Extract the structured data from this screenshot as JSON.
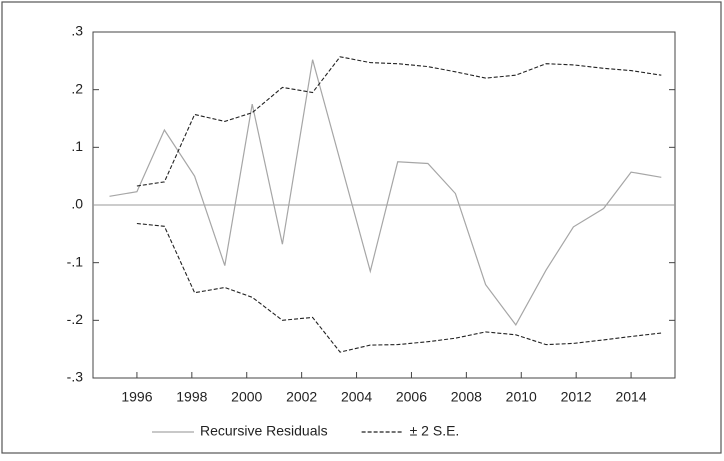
{
  "chart_data": {
    "type": "line",
    "xlim": [
      1994.4,
      2015.6
    ],
    "xticks": [
      1996,
      1998,
      2000,
      2002,
      2004,
      2006,
      2008,
      2010,
      2012,
      2014
    ],
    "ylim": [
      -0.3,
      0.3
    ],
    "yticks": [
      {
        "value": -0.3,
        "label": "-.3"
      },
      {
        "value": -0.2,
        "label": "-.2"
      },
      {
        "value": -0.1,
        "label": "-.1"
      },
      {
        "value": 0,
        "label": ".0"
      },
      {
        "value": 0.1,
        "label": ".1"
      },
      {
        "value": 0.2,
        "label": ".2"
      },
      {
        "value": 0.3,
        "label": ".3"
      }
    ],
    "series": [
      {
        "name": "Recursive Residuals",
        "color": "#a6a6a6",
        "dash": false,
        "x": [
          1995.0,
          1996.0,
          1997.0,
          1998.1,
          1999.2,
          2000.2,
          2001.3,
          2002.4,
          2004.5,
          2005.5,
          2006.6,
          2007.6,
          2008.7,
          2009.8,
          2010.9,
          2011.9,
          2013.0,
          2014.0,
          2015.1
        ],
        "values": [
          0.015,
          0.023,
          0.13,
          0.05,
          -0.105,
          0.175,
          -0.068,
          0.252,
          -0.115,
          0.075,
          0.072,
          0.02,
          -0.138,
          -0.208,
          -0.113,
          -0.038,
          -0.006,
          0.057,
          0.048
        ]
      },
      {
        "name": "± 2 S.E.",
        "color": "#222222",
        "dash": true,
        "x": [
          1996.0,
          1997.0,
          1998.1,
          1999.2,
          2000.2,
          2001.3,
          2002.4,
          2003.4,
          2004.5,
          2005.5,
          2006.6,
          2007.6,
          2008.7,
          2009.8,
          2010.9,
          2011.9,
          2013.0,
          2014.0,
          2015.1
        ],
        "values": [
          0.033,
          0.04,
          0.157,
          0.145,
          0.16,
          0.204,
          0.195,
          0.257,
          0.247,
          0.245,
          0.24,
          0.231,
          0.22,
          0.225,
          0.245,
          0.243,
          0.237,
          0.233,
          0.225
        ]
      },
      {
        "color": "#222222",
        "dash": true,
        "x": [
          1996.0,
          1997.0,
          1998.1,
          1999.2,
          2000.2,
          2001.3,
          2002.4,
          2003.4,
          2004.5,
          2005.5,
          2006.6,
          2007.6,
          2008.7,
          2009.8,
          2010.9,
          2011.9,
          2013.0,
          2014.0,
          2015.1
        ],
        "values": [
          -0.032,
          -0.037,
          -0.152,
          -0.143,
          -0.16,
          -0.2,
          -0.195,
          -0.255,
          -0.243,
          -0.242,
          -0.237,
          -0.231,
          -0.22,
          -0.225,
          -0.242,
          -0.24,
          -0.234,
          -0.228,
          -0.222
        ]
      }
    ]
  }
}
